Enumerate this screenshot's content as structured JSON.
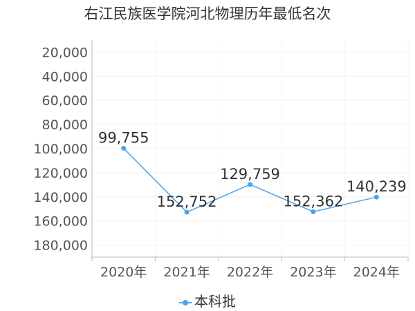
{
  "title": "右江民族医学院河北物理历年最低名次",
  "legend": {
    "label": "本科批",
    "color": "#4aa3f0"
  },
  "chart_data": {
    "type": "line",
    "title": "右江民族医学院河北物理历年最低名次",
    "categories": [
      "2020年",
      "2021年",
      "2022年",
      "2023年",
      "2024年"
    ],
    "series": [
      {
        "name": "本科批",
        "values": [
          99755,
          152752,
          129759,
          152362,
          140239
        ],
        "labels": [
          "99,755",
          "152,752",
          "129,759",
          "152,362",
          "140,239"
        ]
      }
    ],
    "y_ticks": [
      "20,000",
      "40,000",
      "60,000",
      "80,000",
      "100,000",
      "120,000",
      "140,000",
      "160,000",
      "180,000"
    ],
    "ylim": [
      10000,
      190000
    ],
    "y_inverted": true,
    "grid": true,
    "legend_position": "bottom"
  }
}
